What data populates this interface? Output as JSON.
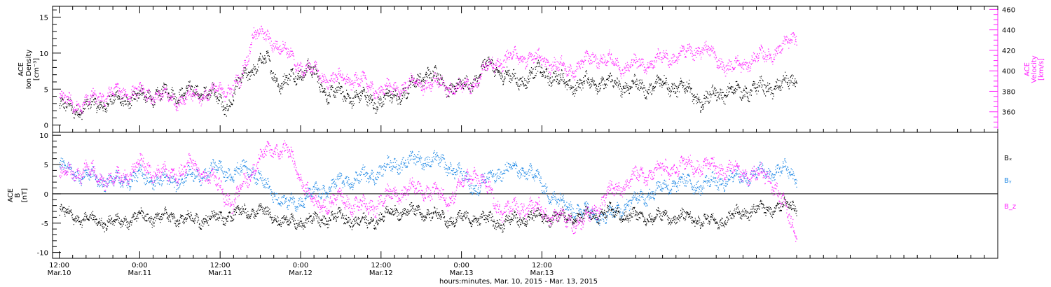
{
  "chart_data": [
    {
      "type": "scatter",
      "panel": "top",
      "ylabel_left": [
        "ACE",
        "Ion Density",
        "[cm⁻³]"
      ],
      "ylabel_right": [
        "ACE",
        "Velocity",
        "[km/s]"
      ],
      "ylim_left": [
        -1,
        16.5
      ],
      "ylim_right": [
        340,
        463
      ],
      "yticks_left": [
        0,
        5,
        10,
        15
      ],
      "yticks_right": [
        360,
        380,
        400,
        420,
        440,
        460
      ],
      "series": [
        {
          "axis": "left",
          "color": "#000000",
          "knots": [
            [
              0,
              2.5
            ],
            [
              3,
              2.2
            ],
            [
              6,
              3.0
            ],
            [
              10,
              3.6
            ],
            [
              14,
              4.2
            ],
            [
              18,
              4.4
            ],
            [
              22,
              4.8
            ],
            [
              25,
              2.5
            ],
            [
              28,
              7.5
            ],
            [
              31,
              9.0
            ],
            [
              33,
              5.5
            ],
            [
              37,
              8.0
            ],
            [
              40,
              4.5
            ],
            [
              44,
              4.0
            ],
            [
              48,
              3.2
            ],
            [
              52,
              4.8
            ],
            [
              55,
              7.5
            ],
            [
              58,
              5.2
            ],
            [
              61,
              5.5
            ],
            [
              64,
              8.5
            ],
            [
              68,
              6.0
            ],
            [
              72,
              7.5
            ],
            [
              76,
              5.5
            ],
            [
              80,
              6.0
            ],
            [
              84,
              5.5
            ],
            [
              88,
              5.2
            ],
            [
              90,
              5.8
            ],
            [
              94,
              4.8
            ],
            [
              96,
              3.0
            ],
            [
              98,
              4.5
            ],
            [
              101,
              4.6
            ],
            [
              104,
              5.0
            ],
            [
              108,
              5.5
            ],
            [
              110,
              6.5
            ]
          ],
          "jitter": 1.5
        },
        {
          "axis": "right",
          "color": "#ff22ff",
          "knots": [
            [
              0,
              372
            ],
            [
              3,
              366
            ],
            [
              6,
              375
            ],
            [
              10,
              380
            ],
            [
              14,
              376
            ],
            [
              18,
              372
            ],
            [
              22,
              378
            ],
            [
              25,
              382
            ],
            [
              27,
              388
            ],
            [
              29,
              440
            ],
            [
              31,
              430
            ],
            [
              33,
              425
            ],
            [
              35,
              408
            ],
            [
              37,
              402
            ],
            [
              40,
              392
            ],
            [
              44,
              392
            ],
            [
              48,
              380
            ],
            [
              52,
              386
            ],
            [
              56,
              388
            ],
            [
              60,
              382
            ],
            [
              62,
              390
            ],
            [
              64,
              405
            ],
            [
              68,
              414
            ],
            [
              72,
              411
            ],
            [
              76,
              400
            ],
            [
              80,
              414
            ],
            [
              84,
              404
            ],
            [
              88,
              408
            ],
            [
              90,
              412
            ],
            [
              92,
              414
            ],
            [
              96,
              422
            ],
            [
              100,
              402
            ],
            [
              104,
              412
            ],
            [
              108,
              422
            ],
            [
              110,
              437
            ]
          ],
          "jitter": 10
        }
      ]
    },
    {
      "type": "scatter",
      "panel": "bottom",
      "ylabel_left": [
        "ACE",
        "B",
        "[nT]"
      ],
      "ylim": [
        -11,
        10.5
      ],
      "yticks": [
        -10,
        -5,
        0,
        5,
        10
      ],
      "legend": [
        "Bₓ",
        "Bᵧ",
        "B_z"
      ],
      "legend_placement": "right",
      "series": [
        {
          "name": "Bₓ",
          "color": "#000000",
          "knots": [
            [
              0,
              -3
            ],
            [
              4,
              -4.5
            ],
            [
              8,
              -5
            ],
            [
              12,
              -4
            ],
            [
              16,
              -4
            ],
            [
              20,
              -4.5
            ],
            [
              24,
              -4
            ],
            [
              28,
              -3
            ],
            [
              30,
              -3
            ],
            [
              32,
              -4
            ],
            [
              34,
              -5
            ],
            [
              38,
              -4.5
            ],
            [
              42,
              -4
            ],
            [
              46,
              -5
            ],
            [
              50,
              -3
            ],
            [
              54,
              -3
            ],
            [
              58,
              -4.5
            ],
            [
              62,
              -4
            ],
            [
              66,
              -5
            ],
            [
              70,
              -4
            ],
            [
              74,
              -4
            ],
            [
              78,
              -4
            ],
            [
              82,
              -3
            ],
            [
              86,
              -4
            ],
            [
              90,
              -4
            ],
            [
              94,
              -4
            ],
            [
              98,
              -5
            ],
            [
              102,
              -3
            ],
            [
              106,
              -2.5
            ],
            [
              110,
              -2
            ]
          ],
          "jitter": 1.5
        },
        {
          "name": "Bᵧ",
          "color": "#1e88e5",
          "knots": [
            [
              0,
              4.5
            ],
            [
              4,
              3
            ],
            [
              8,
              2
            ],
            [
              12,
              3
            ],
            [
              16,
              2
            ],
            [
              20,
              3
            ],
            [
              22,
              3.5
            ],
            [
              24,
              4.5
            ],
            [
              26,
              3
            ],
            [
              28,
              5
            ],
            [
              31,
              1
            ],
            [
              34,
              -2
            ],
            [
              38,
              0
            ],
            [
              42,
              2
            ],
            [
              46,
              3
            ],
            [
              50,
              5
            ],
            [
              54,
              6
            ],
            [
              58,
              5
            ],
            [
              62,
              1
            ],
            [
              66,
              4
            ],
            [
              70,
              4
            ],
            [
              74,
              -1
            ],
            [
              78,
              -3
            ],
            [
              82,
              -4
            ],
            [
              84,
              -2
            ],
            [
              88,
              0
            ],
            [
              92,
              2
            ],
            [
              96,
              1.5
            ],
            [
              100,
              2.5
            ],
            [
              104,
              3.5
            ],
            [
              108,
              4
            ],
            [
              110,
              3
            ]
          ],
          "jitter": 1.8
        },
        {
          "name": "B_z",
          "color": "#ff22ff",
          "knots": [
            [
              0,
              3
            ],
            [
              4,
              4
            ],
            [
              8,
              2
            ],
            [
              12,
              5
            ],
            [
              16,
              3
            ],
            [
              20,
              5
            ],
            [
              24,
              1
            ],
            [
              26,
              -2
            ],
            [
              28,
              3
            ],
            [
              30,
              6
            ],
            [
              32,
              8
            ],
            [
              34,
              7
            ],
            [
              36,
              3
            ],
            [
              38,
              -2
            ],
            [
              42,
              -1
            ],
            [
              46,
              -2.5
            ],
            [
              50,
              0
            ],
            [
              54,
              1
            ],
            [
              58,
              -1
            ],
            [
              62,
              4
            ],
            [
              66,
              -3
            ],
            [
              70,
              -2
            ],
            [
              74,
              -4
            ],
            [
              78,
              -5
            ],
            [
              82,
              0
            ],
            [
              86,
              3
            ],
            [
              90,
              4
            ],
            [
              94,
              5
            ],
            [
              98,
              4.5
            ],
            [
              102,
              3.5
            ],
            [
              106,
              3
            ],
            [
              108,
              -2
            ],
            [
              110,
              -7
            ]
          ],
          "jitter": 2.0
        }
      ]
    }
  ],
  "x_axis": {
    "range_hours": [
      -1,
      140
    ],
    "ticks": [
      {
        "h": 0,
        "time": "12:00",
        "date": "Mar.10"
      },
      {
        "h": 12,
        "time": "0:00",
        "date": "Mar.11"
      },
      {
        "h": 24,
        "time": "12:00",
        "date": "Mar.11"
      },
      {
        "h": 36,
        "time": "0:00",
        "date": "Mar.12"
      },
      {
        "h": 48,
        "time": "12:00",
        "date": "Mar.12"
      },
      {
        "h": 60,
        "time": "0:00",
        "date": "Mar.13"
      },
      {
        "h": 72,
        "time": "12:00",
        "date": "Mar.13"
      }
    ],
    "data_end_hour": 110,
    "xlabel": "hours:minutes, Mar. 10, 2015 - Mar. 13, 2015"
  },
  "colors": {
    "black": "#000000",
    "magenta": "#ff22ff",
    "blue": "#1e88e5"
  }
}
